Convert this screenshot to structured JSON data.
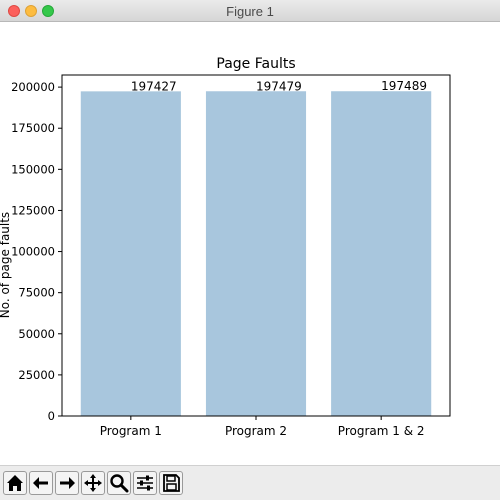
{
  "window": {
    "title": "Figure 1",
    "close_icon": "close-icon",
    "minimize_icon": "minimize-icon",
    "maximize_icon": "maximize-icon"
  },
  "chart_data": {
    "type": "bar",
    "title": "Page Faults",
    "xlabel": "",
    "ylabel": "No. of page faults",
    "categories": [
      "Program 1",
      "Program 2",
      "Program  1 & 2"
    ],
    "values": [
      197427,
      197479,
      197489
    ],
    "data_labels": [
      "197427",
      "197479",
      "197489"
    ],
    "ylim": [
      0,
      207364
    ],
    "yticks": [
      0,
      25000,
      50000,
      75000,
      100000,
      125000,
      150000,
      175000,
      200000
    ],
    "bar_color": "#a8c6dd",
    "grid": false,
    "legend": "none"
  },
  "toolbar": {
    "buttons": [
      {
        "name": "home-button",
        "icon": "home-icon"
      },
      {
        "name": "back-button",
        "icon": "arrow-left-icon"
      },
      {
        "name": "forward-button",
        "icon": "arrow-right-icon"
      },
      {
        "name": "pan-button",
        "icon": "move-icon"
      },
      {
        "name": "zoom-button",
        "icon": "zoom-icon"
      },
      {
        "name": "configure-subplots-button",
        "icon": "sliders-icon"
      },
      {
        "name": "save-button",
        "icon": "save-icon"
      }
    ]
  }
}
